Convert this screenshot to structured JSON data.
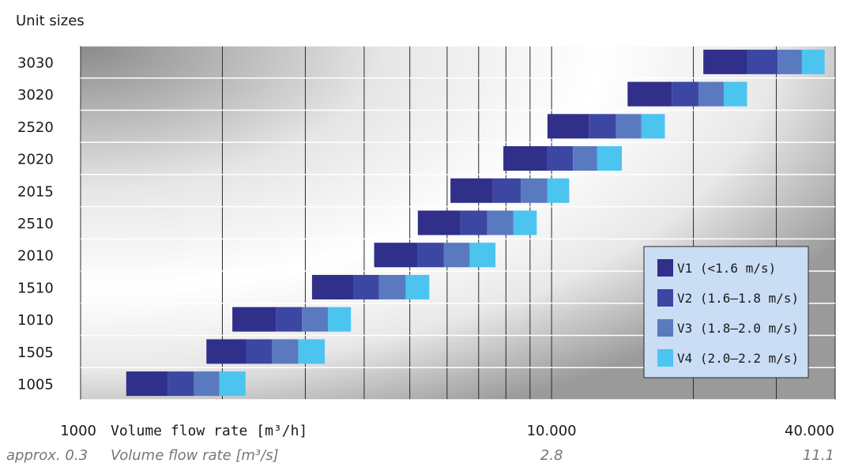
{
  "chart_data": {
    "type": "bar",
    "subtype": "floating-stacked-horizontal-bar",
    "title": "",
    "ylabel": "Unit sizes",
    "xlabel": "Volume flow rate [m³/h]",
    "xlabel_secondary": "Volume flow rate [m³/s]",
    "x_scale": "log",
    "xlim": [
      1000,
      40000
    ],
    "x_tick_labels": [
      {
        "value": 1000,
        "label": "1000",
        "secondary": "approx. 0.3"
      },
      {
        "value": 10000,
        "label": "10.000",
        "secondary": "2.8"
      },
      {
        "value": 40000,
        "label": "40.000",
        "secondary": "11.1"
      }
    ],
    "x_gridlines": [
      1000,
      2000,
      3000,
      4000,
      5000,
      6000,
      7000,
      8000,
      9000,
      10000,
      20000,
      30000,
      40000
    ],
    "grid": true,
    "legend_position": "right",
    "series": [
      {
        "name": "V1 (<1.6 m/s)",
        "color": "#302f8a"
      },
      {
        "name": "V2 (1.6–1.8 m/s)",
        "color": "#3c47a3"
      },
      {
        "name": "V3 (1.8–2.0 m/s)",
        "color": "#5a7ac0"
      },
      {
        "name": "V4 (2.0–2.2 m/s)",
        "color": "#4cc4f0"
      }
    ],
    "categories": [
      "3030",
      "3020",
      "2520",
      "2020",
      "2015",
      "2510",
      "2010",
      "1510",
      "1010",
      "1505",
      "1005"
    ],
    "ranges": [
      {
        "unit": "3030",
        "bounds": [
          21000,
          26000,
          30200,
          34000,
          38000
        ]
      },
      {
        "unit": "3020",
        "bounds": [
          14500,
          18000,
          20500,
          23200,
          26000
        ]
      },
      {
        "unit": "2520",
        "bounds": [
          9800,
          12000,
          13700,
          15500,
          17400
        ]
      },
      {
        "unit": "2020",
        "bounds": [
          7900,
          9800,
          11100,
          12500,
          14100
        ]
      },
      {
        "unit": "2015",
        "bounds": [
          6100,
          7500,
          8600,
          9800,
          10900
        ]
      },
      {
        "unit": "2510",
        "bounds": [
          5200,
          6400,
          7300,
          8300,
          9300
        ]
      },
      {
        "unit": "2010",
        "bounds": [
          4200,
          5200,
          5900,
          6700,
          7600
        ]
      },
      {
        "unit": "1510",
        "bounds": [
          3100,
          3800,
          4300,
          4900,
          5500
        ]
      },
      {
        "unit": "1010",
        "bounds": [
          2100,
          2600,
          2950,
          3350,
          3750
        ]
      },
      {
        "unit": "1505",
        "bounds": [
          1850,
          2250,
          2550,
          2900,
          3300
        ]
      },
      {
        "unit": "1005",
        "bounds": [
          1250,
          1530,
          1740,
          1970,
          2240
        ]
      }
    ]
  }
}
